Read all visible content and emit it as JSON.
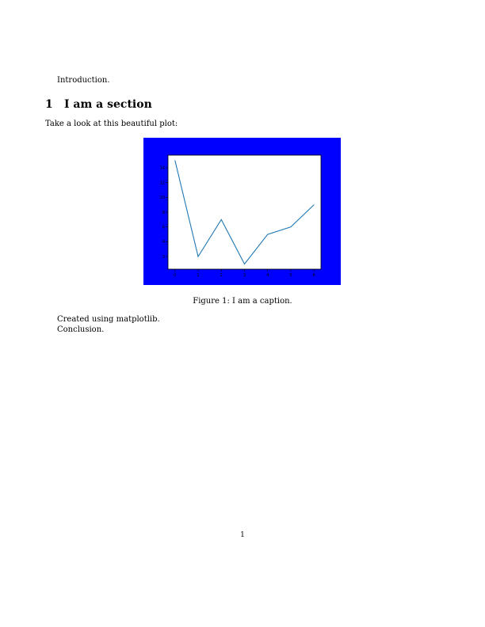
{
  "document": {
    "intro": "Introduction.",
    "section": {
      "number": "1",
      "title": "I am a section"
    },
    "lead_text": "Take a look at this beautiful plot:",
    "figure": {
      "caption": "Figure 1: I am a caption.",
      "background_color": "#0000ff",
      "line_color": "#1f77b4"
    },
    "after_figure": "Created using matplotlib.",
    "conclusion": "Conclusion.",
    "page_number": "1"
  },
  "chart_data": {
    "type": "line",
    "x": [
      0,
      1,
      2,
      3,
      4,
      5,
      6
    ],
    "series": [
      {
        "values": [
          15,
          2,
          7,
          1,
          5,
          6,
          9
        ]
      }
    ],
    "xticks": [
      0,
      1,
      2,
      3,
      4,
      5,
      6
    ],
    "yticks": [
      2,
      4,
      6,
      8,
      10,
      12,
      14
    ],
    "xlim": [
      -0.3,
      6.3
    ],
    "ylim": [
      0.3,
      15.7
    ],
    "title": "",
    "xlabel": "",
    "ylabel": "",
    "grid": false
  }
}
